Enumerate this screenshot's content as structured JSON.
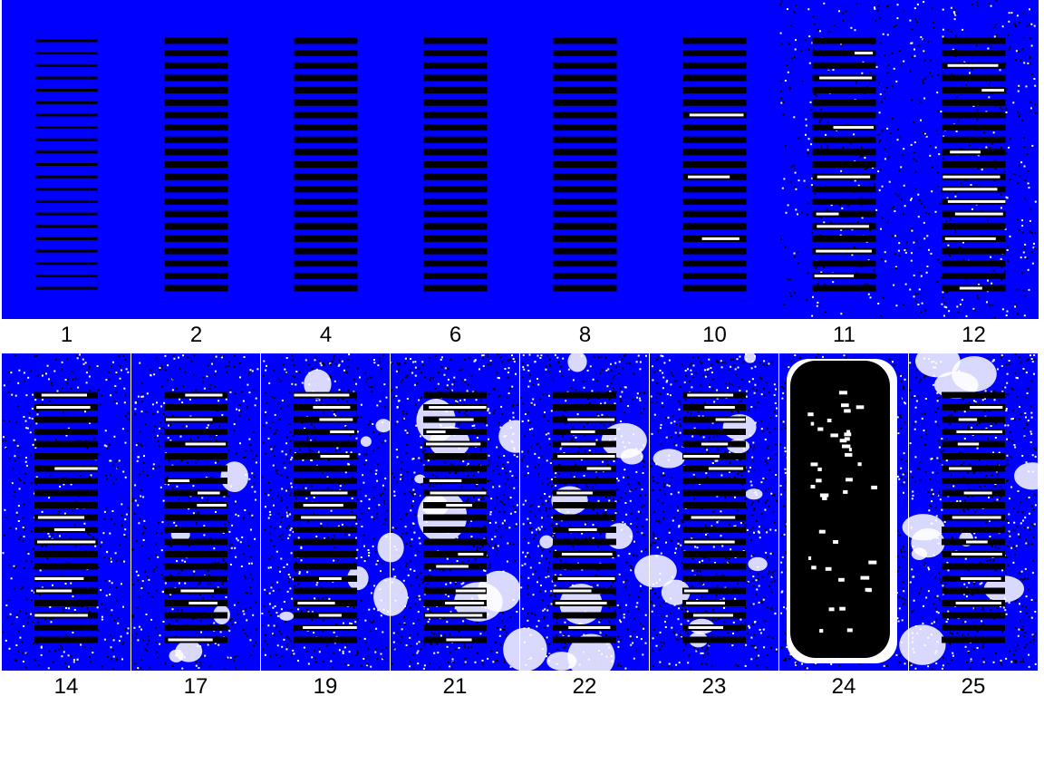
{
  "colors": {
    "background": "#0000ff",
    "stripe": "#000000",
    "void": "#ffffff",
    "speckle": "#000000"
  },
  "panels": [
    {
      "label": "1",
      "row": 0,
      "stage": 0
    },
    {
      "label": "2",
      "row": 0,
      "stage": 1
    },
    {
      "label": "4",
      "row": 0,
      "stage": 1
    },
    {
      "label": "6",
      "row": 0,
      "stage": 1
    },
    {
      "label": "8",
      "row": 0,
      "stage": 1
    },
    {
      "label": "10",
      "row": 0,
      "stage": 2
    },
    {
      "label": "11",
      "row": 0,
      "stage": 3
    },
    {
      "label": "12",
      "row": 0,
      "stage": 4
    },
    {
      "label": "14",
      "row": 1,
      "stage": 5
    },
    {
      "label": "17",
      "row": 1,
      "stage": 6
    },
    {
      "label": "19",
      "row": 1,
      "stage": 7
    },
    {
      "label": "21",
      "row": 1,
      "stage": 8
    },
    {
      "label": "22",
      "row": 1,
      "stage": 8
    },
    {
      "label": "23",
      "row": 1,
      "stage": 8
    },
    {
      "label": "24",
      "row": 1,
      "stage": 9
    },
    {
      "label": "25",
      "row": 1,
      "stage": 8
    }
  ]
}
